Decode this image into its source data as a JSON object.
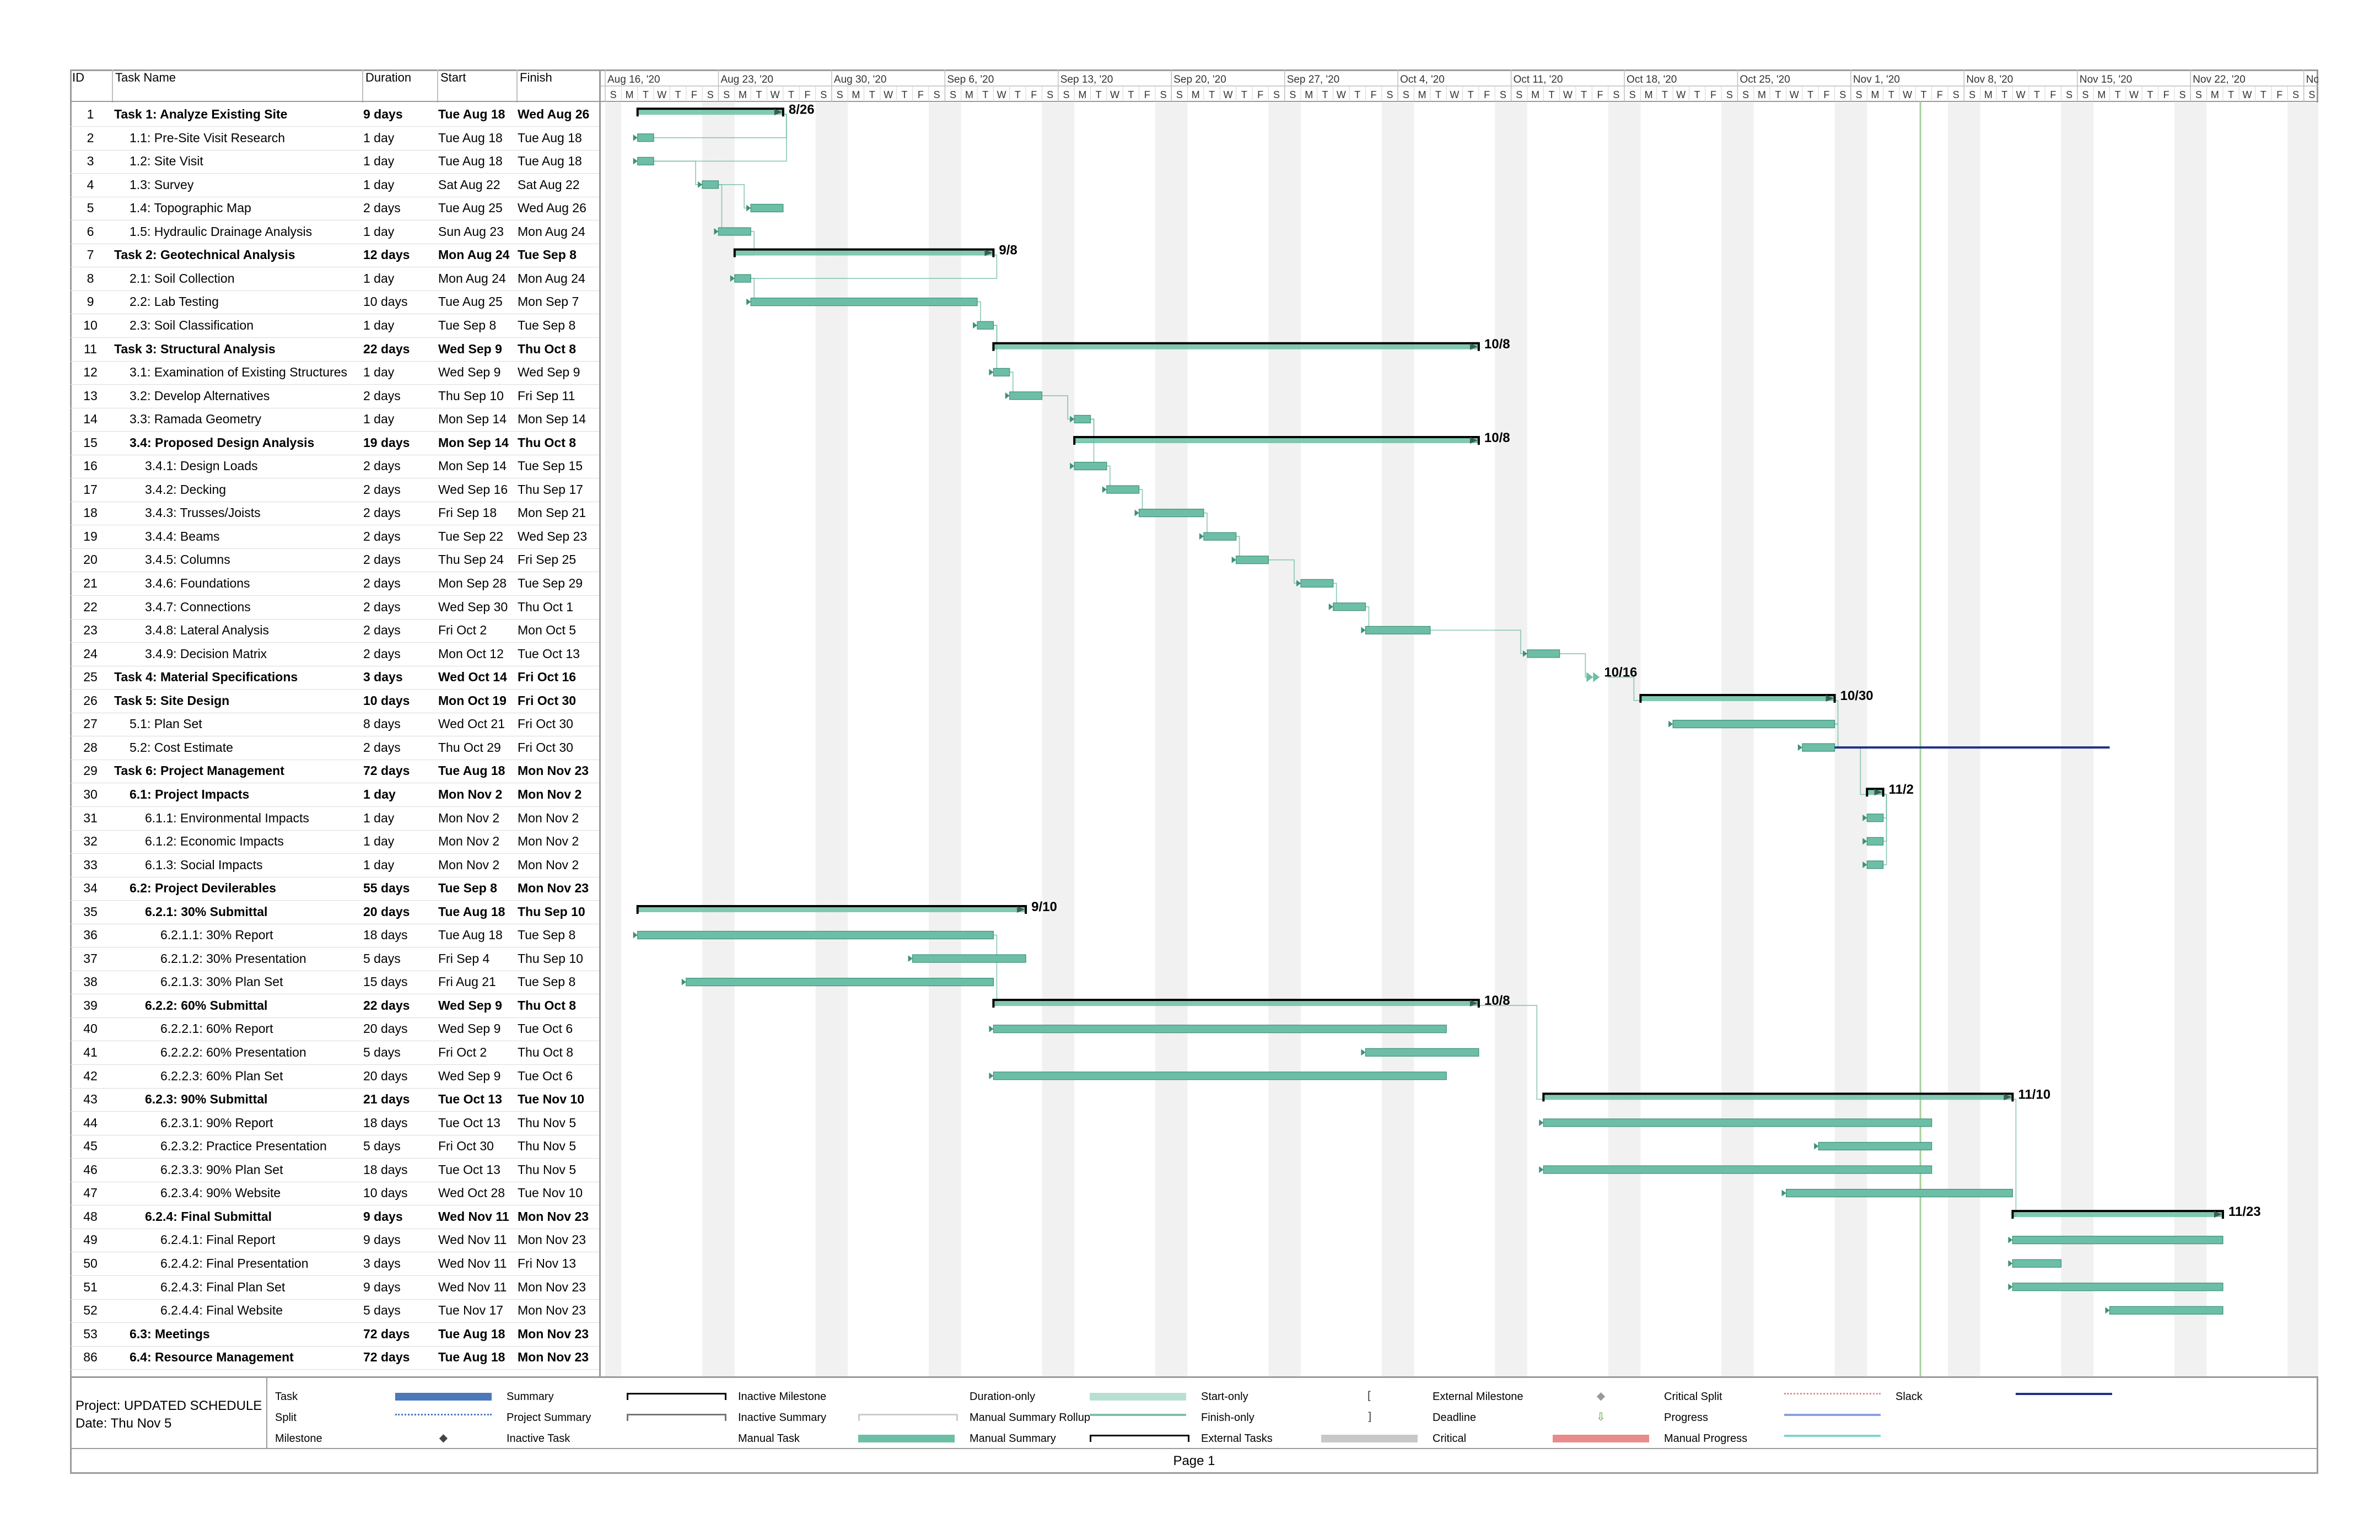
{
  "columns": {
    "id": "ID",
    "name": "Task Name",
    "duration": "Duration",
    "start": "Start",
    "finish": "Finish"
  },
  "timescale": {
    "weeks": [
      "Aug 16, '20",
      "Aug 23, '20",
      "Aug 30, '20",
      "Sep 6, '20",
      "Sep 13, '20",
      "Sep 20, '20",
      "Sep 27, '20",
      "Oct 4, '20",
      "Oct 11, '20",
      "Oct 18, '20",
      "Oct 25, '20",
      "Nov 1, '20",
      "Nov 8, '20",
      "Nov 15, '20",
      "Nov 22, '20",
      "No"
    ],
    "day_letters": [
      "S",
      "M",
      "T",
      "W",
      "T",
      "F",
      "S"
    ]
  },
  "tasks": [
    {
      "id": "1",
      "name": "Task 1: Analyze Existing Site",
      "duration": "9 days",
      "start": "Tue Aug 18",
      "finish": "Wed Aug 26",
      "level": 0,
      "summary": true,
      "label": "8/26",
      "s": "2020-08-18",
      "f": "2020-08-26"
    },
    {
      "id": "2",
      "name": "1.1: Pre-Site Visit Research",
      "duration": "1 day",
      "start": "Tue Aug 18",
      "finish": "Tue Aug 18",
      "level": 1,
      "summary": false,
      "s": "2020-08-18",
      "f": "2020-08-18"
    },
    {
      "id": "3",
      "name": "1.2: Site Visit",
      "duration": "1 day",
      "start": "Tue Aug 18",
      "finish": "Tue Aug 18",
      "level": 1,
      "summary": false,
      "s": "2020-08-18",
      "f": "2020-08-18"
    },
    {
      "id": "4",
      "name": "1.3: Survey",
      "duration": "1 day",
      "start": "Sat Aug 22",
      "finish": "Sat Aug 22",
      "level": 1,
      "summary": false,
      "s": "2020-08-22",
      "f": "2020-08-22"
    },
    {
      "id": "5",
      "name": "1.4: Topographic Map",
      "duration": "2 days",
      "start": "Tue Aug 25",
      "finish": "Wed Aug 26",
      "level": 1,
      "summary": false,
      "s": "2020-08-25",
      "f": "2020-08-26"
    },
    {
      "id": "6",
      "name": "1.5: Hydraulic Drainage Analysis",
      "duration": "1 day",
      "start": "Sun Aug 23",
      "finish": "Mon Aug 24",
      "level": 1,
      "summary": false,
      "s": "2020-08-23",
      "f": "2020-08-24"
    },
    {
      "id": "7",
      "name": "Task 2: Geotechnical Analysis",
      "duration": "12 days",
      "start": "Mon Aug 24",
      "finish": "Tue Sep 8",
      "level": 0,
      "summary": true,
      "label": "9/8",
      "s": "2020-08-24",
      "f": "2020-09-08"
    },
    {
      "id": "8",
      "name": "2.1: Soil Collection",
      "duration": "1 day",
      "start": "Mon Aug 24",
      "finish": "Mon Aug 24",
      "level": 1,
      "summary": false,
      "s": "2020-08-24",
      "f": "2020-08-24"
    },
    {
      "id": "9",
      "name": "2.2: Lab Testing",
      "duration": "10 days",
      "start": "Tue Aug 25",
      "finish": "Mon Sep 7",
      "level": 1,
      "summary": false,
      "s": "2020-08-25",
      "f": "2020-09-07"
    },
    {
      "id": "10",
      "name": "2.3: Soil Classification",
      "duration": "1 day",
      "start": "Tue Sep 8",
      "finish": "Tue Sep 8",
      "level": 1,
      "summary": false,
      "s": "2020-09-08",
      "f": "2020-09-08"
    },
    {
      "id": "11",
      "name": "Task 3: Structural Analysis",
      "duration": "22 days",
      "start": "Wed Sep 9",
      "finish": "Thu Oct 8",
      "level": 0,
      "summary": true,
      "label": "10/8",
      "s": "2020-09-09",
      "f": "2020-10-08"
    },
    {
      "id": "12",
      "name": "3.1: Examination of Existing Structures",
      "duration": "1 day",
      "start": "Wed Sep 9",
      "finish": "Wed Sep 9",
      "level": 1,
      "summary": false,
      "s": "2020-09-09",
      "f": "2020-09-09"
    },
    {
      "id": "13",
      "name": "3.2: Develop Alternatives",
      "duration": "2 days",
      "start": "Thu Sep 10",
      "finish": "Fri Sep 11",
      "level": 1,
      "summary": false,
      "s": "2020-09-10",
      "f": "2020-09-11"
    },
    {
      "id": "14",
      "name": "3.3: Ramada Geometry",
      "duration": "1 day",
      "start": "Mon Sep 14",
      "finish": "Mon Sep 14",
      "level": 1,
      "summary": false,
      "s": "2020-09-14",
      "f": "2020-09-14"
    },
    {
      "id": "15",
      "name": "3.4: Proposed Design Analysis",
      "duration": "19 days",
      "start": "Mon Sep 14",
      "finish": "Thu Oct 8",
      "level": 1,
      "summary": true,
      "label": "10/8",
      "s": "2020-09-14",
      "f": "2020-10-08"
    },
    {
      "id": "16",
      "name": "3.4.1: Design Loads",
      "duration": "2 days",
      "start": "Mon Sep 14",
      "finish": "Tue Sep 15",
      "level": 2,
      "summary": false,
      "s": "2020-09-14",
      "f": "2020-09-15"
    },
    {
      "id": "17",
      "name": "3.4.2: Decking",
      "duration": "2 days",
      "start": "Wed Sep 16",
      "finish": "Thu Sep 17",
      "level": 2,
      "summary": false,
      "s": "2020-09-16",
      "f": "2020-09-17"
    },
    {
      "id": "18",
      "name": "3.4.3: Trusses/Joists",
      "duration": "2 days",
      "start": "Fri Sep 18",
      "finish": "Mon Sep 21",
      "level": 2,
      "summary": false,
      "s": "2020-09-18",
      "f": "2020-09-21"
    },
    {
      "id": "19",
      "name": "3.4.4: Beams",
      "duration": "2 days",
      "start": "Tue Sep 22",
      "finish": "Wed Sep 23",
      "level": 2,
      "summary": false,
      "s": "2020-09-22",
      "f": "2020-09-23"
    },
    {
      "id": "20",
      "name": "3.4.5: Columns",
      "duration": "2 days",
      "start": "Thu Sep 24",
      "finish": "Fri Sep 25",
      "level": 2,
      "summary": false,
      "s": "2020-09-24",
      "f": "2020-09-25"
    },
    {
      "id": "21",
      "name": "3.4.6: Foundations",
      "duration": "2 days",
      "start": "Mon Sep 28",
      "finish": "Tue Sep 29",
      "level": 2,
      "summary": false,
      "s": "2020-09-28",
      "f": "2020-09-29"
    },
    {
      "id": "22",
      "name": "3.4.7: Connections",
      "duration": "2 days",
      "start": "Wed Sep 30",
      "finish": "Thu Oct 1",
      "level": 2,
      "summary": false,
      "s": "2020-09-30",
      "f": "2020-10-01"
    },
    {
      "id": "23",
      "name": "3.4.8: Lateral Analysis",
      "duration": "2 days",
      "start": "Fri Oct 2",
      "finish": "Mon Oct 5",
      "level": 2,
      "summary": false,
      "s": "2020-10-02",
      "f": "2020-10-05"
    },
    {
      "id": "24",
      "name": "3.4.9: Decision Matrix",
      "duration": "2 days",
      "start": "Mon Oct 12",
      "finish": "Tue Oct 13",
      "level": 2,
      "summary": false,
      "s": "2020-10-12",
      "f": "2020-10-13"
    },
    {
      "id": "25",
      "name": "Task 4: Material Specifications",
      "duration": "3 days",
      "start": "Wed Oct 14",
      "finish": "Fri Oct 16",
      "level": 0,
      "summary": true,
      "label": "10/16",
      "milestone": true,
      "s": "2020-10-16",
      "f": "2020-10-16"
    },
    {
      "id": "26",
      "name": "Task 5: Site Design",
      "duration": "10 days",
      "start": "Mon Oct 19",
      "finish": "Fri Oct 30",
      "level": 0,
      "summary": true,
      "label": "10/30",
      "s": "2020-10-19",
      "f": "2020-10-30"
    },
    {
      "id": "27",
      "name": "5.1: Plan Set",
      "duration": "8 days",
      "start": "Wed Oct 21",
      "finish": "Fri Oct 30",
      "level": 1,
      "summary": false,
      "s": "2020-10-21",
      "f": "2020-10-30"
    },
    {
      "id": "28",
      "name": "5.2: Cost Estimate",
      "duration": "2 days",
      "start": "Thu Oct 29",
      "finish": "Fri Oct 30",
      "level": 1,
      "summary": false,
      "slack": true,
      "s": "2020-10-29",
      "f": "2020-10-30"
    },
    {
      "id": "29",
      "name": "Task 6: Project Management",
      "duration": "72 days",
      "start": "Tue Aug 18",
      "finish": "Mon Nov 23",
      "level": 0,
      "summary": true,
      "nobar": true,
      "s": "2020-08-18",
      "f": "2020-11-23"
    },
    {
      "id": "30",
      "name": "6.1: Project Impacts",
      "duration": "1 day",
      "start": "Mon Nov 2",
      "finish": "Mon Nov 2",
      "level": 1,
      "summary": true,
      "label": "11/2",
      "s": "2020-11-02",
      "f": "2020-11-02"
    },
    {
      "id": "31",
      "name": "6.1.1: Environmental Impacts",
      "duration": "1 day",
      "start": "Mon Nov 2",
      "finish": "Mon Nov 2",
      "level": 2,
      "summary": false,
      "s": "2020-11-02",
      "f": "2020-11-02"
    },
    {
      "id": "32",
      "name": "6.1.2: Economic Impacts",
      "duration": "1 day",
      "start": "Mon Nov 2",
      "finish": "Mon Nov 2",
      "level": 2,
      "summary": false,
      "s": "2020-11-02",
      "f": "2020-11-02"
    },
    {
      "id": "33",
      "name": "6.1.3: Social Impacts",
      "duration": "1 day",
      "start": "Mon Nov 2",
      "finish": "Mon Nov 2",
      "level": 2,
      "summary": false,
      "s": "2020-11-02",
      "f": "2020-11-02"
    },
    {
      "id": "34",
      "name": "6.2: Project Devilerables",
      "duration": "55 days",
      "start": "Tue Sep 8",
      "finish": "Mon Nov 23",
      "level": 1,
      "summary": true,
      "nobar": true,
      "s": "2020-09-08",
      "f": "2020-11-23"
    },
    {
      "id": "35",
      "name": "6.2.1: 30% Submittal",
      "duration": "20 days",
      "start": "Tue Aug 18",
      "finish": "Thu Sep 10",
      "level": 2,
      "summary": true,
      "label": "9/10",
      "s": "2020-08-18",
      "f": "2020-09-10"
    },
    {
      "id": "36",
      "name": "6.2.1.1: 30% Report",
      "duration": "18 days",
      "start": "Tue Aug 18",
      "finish": "Tue Sep 8",
      "level": 3,
      "summary": false,
      "s": "2020-08-18",
      "f": "2020-09-08"
    },
    {
      "id": "37",
      "name": "6.2.1.2: 30% Presentation",
      "duration": "5 days",
      "start": "Fri Sep 4",
      "finish": "Thu Sep 10",
      "level": 3,
      "summary": false,
      "s": "2020-09-04",
      "f": "2020-09-10"
    },
    {
      "id": "38",
      "name": "6.2.1.3: 30% Plan Set",
      "duration": "15 days",
      "start": "Fri Aug 21",
      "finish": "Tue Sep 8",
      "level": 3,
      "summary": false,
      "s": "2020-08-21",
      "f": "2020-09-08"
    },
    {
      "id": "39",
      "name": "6.2.2: 60% Submittal",
      "duration": "22 days",
      "start": "Wed Sep 9",
      "finish": "Thu Oct 8",
      "level": 2,
      "summary": true,
      "label": "10/8",
      "s": "2020-09-09",
      "f": "2020-10-08"
    },
    {
      "id": "40",
      "name": "6.2.2.1: 60% Report",
      "duration": "20 days",
      "start": "Wed Sep 9",
      "finish": "Tue Oct 6",
      "level": 3,
      "summary": false,
      "s": "2020-09-09",
      "f": "2020-10-06"
    },
    {
      "id": "41",
      "name": "6.2.2.2: 60% Presentation",
      "duration": "5 days",
      "start": "Fri Oct 2",
      "finish": "Thu Oct 8",
      "level": 3,
      "summary": false,
      "s": "2020-10-02",
      "f": "2020-10-08"
    },
    {
      "id": "42",
      "name": "6.2.2.3: 60% Plan Set",
      "duration": "20 days",
      "start": "Wed Sep 9",
      "finish": "Tue Oct 6",
      "level": 3,
      "summary": false,
      "s": "2020-09-09",
      "f": "2020-10-06"
    },
    {
      "id": "43",
      "name": "6.2.3: 90% Submittal",
      "duration": "21 days",
      "start": "Tue Oct 13",
      "finish": "Tue Nov 10",
      "level": 2,
      "summary": true,
      "label": "11/10",
      "s": "2020-10-13",
      "f": "2020-11-10"
    },
    {
      "id": "44",
      "name": "6.2.3.1: 90% Report",
      "duration": "18 days",
      "start": "Tue Oct 13",
      "finish": "Thu Nov 5",
      "level": 3,
      "summary": false,
      "s": "2020-10-13",
      "f": "2020-11-05"
    },
    {
      "id": "45",
      "name": "6.2.3.2: Practice Presentation",
      "duration": "5 days",
      "start": "Fri Oct 30",
      "finish": "Thu Nov 5",
      "level": 3,
      "summary": false,
      "s": "2020-10-30",
      "f": "2020-11-05"
    },
    {
      "id": "46",
      "name": "6.2.3.3: 90% Plan Set",
      "duration": "18 days",
      "start": "Tue Oct 13",
      "finish": "Thu Nov 5",
      "level": 3,
      "summary": false,
      "s": "2020-10-13",
      "f": "2020-11-05"
    },
    {
      "id": "47",
      "name": "6.2.3.4: 90% Website",
      "duration": "10 days",
      "start": "Wed Oct 28",
      "finish": "Tue Nov 10",
      "level": 3,
      "summary": false,
      "s": "2020-10-28",
      "f": "2020-11-10"
    },
    {
      "id": "48",
      "name": "6.2.4: Final Submittal",
      "duration": "9 days",
      "start": "Wed Nov 11",
      "finish": "Mon Nov 23",
      "level": 2,
      "summary": true,
      "label": "11/23",
      "s": "2020-11-11",
      "f": "2020-11-23"
    },
    {
      "id": "49",
      "name": "6.2.4.1: Final Report",
      "duration": "9 days",
      "start": "Wed Nov 11",
      "finish": "Mon Nov 23",
      "level": 3,
      "summary": false,
      "s": "2020-11-11",
      "f": "2020-11-23"
    },
    {
      "id": "50",
      "name": "6.2.4.2: Final Presentation",
      "duration": "3 days",
      "start": "Wed Nov 11",
      "finish": "Fri Nov 13",
      "level": 3,
      "summary": false,
      "s": "2020-11-11",
      "f": "2020-11-13"
    },
    {
      "id": "51",
      "name": "6.2.4.3: Final Plan Set",
      "duration": "9 days",
      "start": "Wed Nov 11",
      "finish": "Mon Nov 23",
      "level": 3,
      "summary": false,
      "s": "2020-11-11",
      "f": "2020-11-23"
    },
    {
      "id": "52",
      "name": "6.2.4.4: Final Website",
      "duration": "5 days",
      "start": "Tue Nov 17",
      "finish": "Mon Nov 23",
      "level": 3,
      "summary": false,
      "s": "2020-11-17",
      "f": "2020-11-23"
    },
    {
      "id": "53",
      "name": "6.3: Meetings",
      "duration": "72 days",
      "start": "Tue Aug 18",
      "finish": "Mon Nov 23",
      "level": 1,
      "summary": true,
      "nobar": true,
      "s": "2020-08-18",
      "f": "2020-11-23"
    },
    {
      "id": "86",
      "name": "6.4: Resource Management",
      "duration": "72 days",
      "start": "Tue Aug 18",
      "finish": "Mon Nov 23",
      "level": 1,
      "summary": true,
      "nobar": true,
      "s": "2020-08-18",
      "f": "2020-11-23"
    }
  ],
  "status_date": "2020-11-05",
  "legend": {
    "project": "Project: UPDATED SCHEDULE",
    "date": "Date: Thu Nov 5",
    "items": [
      "Task",
      "Split",
      "Milestone",
      "Summary",
      "Project Summary",
      "Inactive Task",
      "Inactive Milestone",
      "Inactive Summary",
      "Manual Task",
      "Duration-only",
      "Manual Summary Rollup",
      "Manual Summary",
      "Start-only",
      "Finish-only",
      "External Tasks",
      "External Milestone",
      "Deadline",
      "Critical",
      "Critical Split",
      "Progress",
      "Manual Progress",
      "Slack"
    ]
  },
  "colors": {
    "task": "#6cbfa6",
    "task_border": "#3f8f78",
    "summary": "#000000",
    "weekend": "#f1f1f1",
    "status_line": "#a8cf9a",
    "link": "#7cbfae",
    "slack": "#1f2f8a"
  },
  "footer": {
    "page": "Page 1"
  },
  "chart_data": {
    "type": "gantt",
    "x_axis": "date",
    "xlim": [
      "2020-08-16",
      "2020-11-28"
    ],
    "milestone_labels": [
      "8/26",
      "9/8",
      "10/8",
      "10/8",
      "10/16",
      "10/30",
      "11/2",
      "9/10",
      "10/8",
      "11/10",
      "11/23"
    ]
  }
}
